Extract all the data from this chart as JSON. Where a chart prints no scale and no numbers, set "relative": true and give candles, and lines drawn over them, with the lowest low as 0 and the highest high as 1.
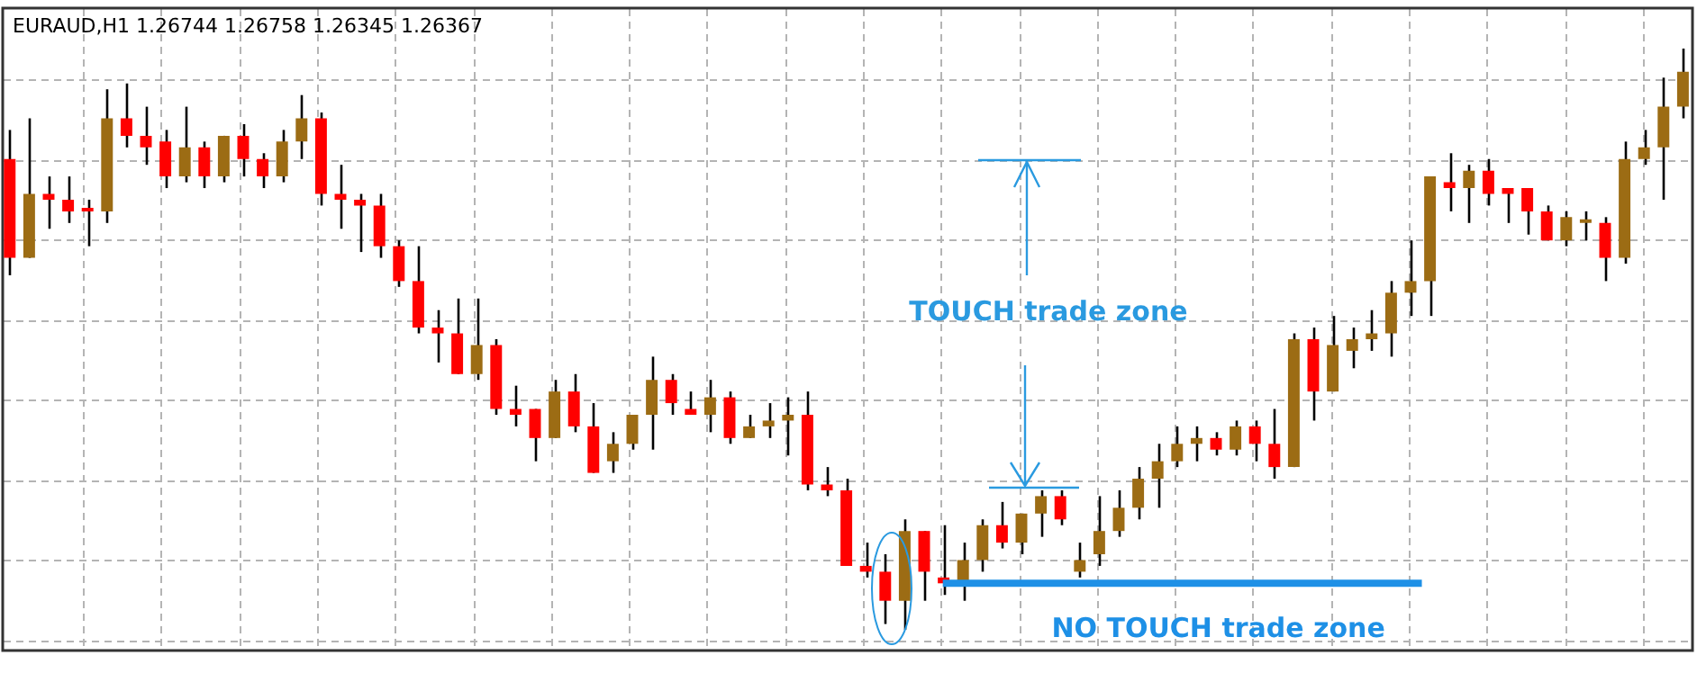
{
  "chart_data": {
    "type": "candlestick",
    "title": "EURAUD,H1  1.26744 1.26758 1.26345 1.26367",
    "relative": true,
    "grid": true,
    "legend": false,
    "annotations": [
      "TOUCH trade zone"
    ],
    "ref_lines": [
      {
        "axis": "y",
        "value": 0.08,
        "label": "NO TOUCH trade zone",
        "color": "#1e90e6"
      }
    ],
    "categories": [
      null,
      null,
      null,
      null,
      null,
      null,
      null,
      null,
      null,
      null,
      null,
      null,
      null,
      null,
      null,
      null,
      null,
      null,
      null,
      null,
      null,
      null,
      null,
      null,
      null,
      null,
      null,
      null,
      null,
      null,
      null,
      null,
      null,
      null,
      null,
      null,
      null,
      null,
      null,
      null,
      null,
      null,
      null,
      null,
      null,
      null,
      null,
      null,
      null,
      null,
      null,
      null,
      null,
      null,
      null,
      null,
      null,
      null,
      null,
      null,
      null,
      null,
      null,
      null,
      null,
      null,
      null,
      null,
      null,
      null,
      null,
      null,
      null,
      null,
      null,
      null,
      null,
      null,
      null,
      null,
      null,
      null,
      null,
      null,
      null,
      null,
      null
    ],
    "ohlc": [
      [
        0.81,
        0.86,
        0.61,
        0.64
      ],
      [
        0.64,
        0.88,
        0.64,
        0.75
      ],
      [
        0.75,
        0.78,
        0.69,
        0.74
      ],
      [
        0.74,
        0.78,
        0.7,
        0.72
      ],
      [
        0.725,
        0.74,
        0.66,
        0.72
      ],
      [
        0.72,
        0.93,
        0.7,
        0.88
      ],
      [
        0.88,
        0.94,
        0.83,
        0.85
      ],
      [
        0.85,
        0.9,
        0.8,
        0.83
      ],
      [
        0.84,
        0.86,
        0.76,
        0.78
      ],
      [
        0.78,
        0.9,
        0.77,
        0.83
      ],
      [
        0.83,
        0.84,
        0.76,
        0.78
      ],
      [
        0.78,
        0.85,
        0.77,
        0.85
      ],
      [
        0.85,
        0.87,
        0.78,
        0.81
      ],
      [
        0.81,
        0.82,
        0.76,
        0.78
      ],
      [
        0.78,
        0.86,
        0.77,
        0.84
      ],
      [
        0.84,
        0.92,
        0.81,
        0.88
      ],
      [
        0.88,
        0.89,
        0.73,
        0.75
      ],
      [
        0.75,
        0.8,
        0.69,
        0.74
      ],
      [
        0.74,
        0.75,
        0.65,
        0.73
      ],
      [
        0.73,
        0.75,
        0.64,
        0.66
      ],
      [
        0.66,
        0.67,
        0.59,
        0.6
      ],
      [
        0.6,
        0.66,
        0.51,
        0.52
      ],
      [
        0.52,
        0.55,
        0.46,
        0.51
      ],
      [
        0.51,
        0.57,
        0.44,
        0.44
      ],
      [
        0.44,
        0.57,
        0.43,
        0.49
      ],
      [
        0.49,
        0.5,
        0.37,
        0.38
      ],
      [
        0.38,
        0.42,
        0.35,
        0.37
      ],
      [
        0.38,
        0.38,
        0.29,
        0.33
      ],
      [
        0.33,
        0.43,
        0.33,
        0.41
      ],
      [
        0.41,
        0.44,
        0.34,
        0.35
      ],
      [
        0.35,
        0.39,
        0.27,
        0.27
      ],
      [
        0.29,
        0.34,
        0.27,
        0.32
      ],
      [
        0.32,
        0.37,
        0.31,
        0.37
      ],
      [
        0.37,
        0.47,
        0.31,
        0.43
      ],
      [
        0.43,
        0.44,
        0.37,
        0.39
      ],
      [
        0.38,
        0.41,
        0.37,
        0.37
      ],
      [
        0.37,
        0.43,
        0.34,
        0.4
      ],
      [
        0.4,
        0.41,
        0.32,
        0.33
      ],
      [
        0.33,
        0.37,
        0.33,
        0.35
      ],
      [
        0.35,
        0.39,
        0.33,
        0.36
      ],
      [
        0.36,
        0.4,
        0.3,
        0.37
      ],
      [
        0.37,
        0.41,
        0.24,
        0.25
      ],
      [
        0.25,
        0.28,
        0.23,
        0.24
      ],
      [
        0.24,
        0.26,
        0.11,
        0.11
      ],
      [
        0.11,
        0.15,
        0.09,
        0.1
      ],
      [
        0.1,
        0.13,
        0.01,
        0.05
      ],
      [
        0.05,
        0.19,
        0,
        0.17
      ],
      [
        0.17,
        0.17,
        0.05,
        0.1
      ],
      [
        0.09,
        0.18,
        0.06,
        0.08
      ],
      [
        0.08,
        0.15,
        0.05,
        0.12
      ],
      [
        0.12,
        0.19,
        0.1,
        0.18
      ],
      [
        0.18,
        0.22,
        0.14,
        0.15
      ],
      [
        0.15,
        0.2,
        0.13,
        0.2
      ],
      [
        0.2,
        0.24,
        0.16,
        0.23
      ],
      [
        0.23,
        0.24,
        0.18,
        0.19
      ],
      [
        0.1,
        0.15,
        0.09,
        0.12
      ],
      [
        0.13,
        0.23,
        0.11,
        0.17
      ],
      [
        0.17,
        0.24,
        0.16,
        0.21
      ],
      [
        0.21,
        0.28,
        0.19,
        0.26
      ],
      [
        0.26,
        0.32,
        0.21,
        0.29
      ],
      [
        0.29,
        0.35,
        0.28,
        0.32
      ],
      [
        0.32,
        0.35,
        0.29,
        0.33
      ],
      [
        0.33,
        0.34,
        0.3,
        0.31
      ],
      [
        0.31,
        0.36,
        0.3,
        0.35
      ],
      [
        0.35,
        0.36,
        0.29,
        0.32
      ],
      [
        0.32,
        0.38,
        0.26,
        0.28
      ],
      [
        0.28,
        0.51,
        0.28,
        0.5
      ],
      [
        0.5,
        0.52,
        0.36,
        0.41
      ],
      [
        0.41,
        0.54,
        0.41,
        0.49
      ],
      [
        0.48,
        0.52,
        0.45,
        0.5
      ],
      [
        0.5,
        0.55,
        0.48,
        0.51
      ],
      [
        0.51,
        0.6,
        0.47,
        0.58
      ],
      [
        0.58,
        0.67,
        0.54,
        0.6
      ],
      [
        0.6,
        0.78,
        0.54,
        0.78
      ],
      [
        0.77,
        0.82,
        0.72,
        0.76
      ],
      [
        0.76,
        0.8,
        0.7,
        0.79
      ],
      [
        0.79,
        0.81,
        0.73,
        0.75
      ],
      [
        0.76,
        0.76,
        0.7,
        0.75
      ],
      [
        0.76,
        0.76,
        0.68,
        0.72
      ],
      [
        0.72,
        0.73,
        0.67,
        0.67
      ],
      [
        0.67,
        0.72,
        0.66,
        0.71
      ],
      [
        0.7,
        0.72,
        0.67,
        0.705
      ],
      [
        0.7,
        0.71,
        0.6,
        0.64
      ],
      [
        0.64,
        0.84,
        0.63,
        0.81
      ],
      [
        0.81,
        0.86,
        0.8,
        0.83
      ],
      [
        0.83,
        0.95,
        0.74,
        0.9
      ],
      [
        0.9,
        1,
        0.88,
        0.96
      ]
    ],
    "colors": [
      "#ff0000",
      "#9c6c14",
      "#ff0000",
      "#ff0000",
      "#ff0000",
      "#9c6c14",
      "#ff0000",
      "#ff0000",
      "#ff0000",
      "#9c6c14",
      "#ff0000",
      "#9c6c14",
      "#ff0000",
      "#ff0000",
      "#9c6c14",
      "#9c6c14",
      "#ff0000",
      "#ff0000",
      "#ff0000",
      "#ff0000",
      "#ff0000",
      "#ff0000",
      "#ff0000",
      "#ff0000",
      "#9c6c14",
      "#ff0000",
      "#ff0000",
      "#ff0000",
      "#9c6c14",
      "#ff0000",
      "#ff0000",
      "#9c6c14",
      "#9c6c14",
      "#9c6c14",
      "#ff0000",
      "#ff0000",
      "#9c6c14",
      "#ff0000",
      "#9c6c14",
      "#9c6c14",
      "#9c6c14",
      "#ff0000",
      "#ff0000",
      "#ff0000",
      "#ff0000",
      "#ff0000",
      "#9c6c14",
      "#ff0000",
      "#ff0000",
      "#9c6c14",
      "#9c6c14",
      "#ff0000",
      "#9c6c14",
      "#9c6c14",
      "#ff0000",
      "#9c6c14",
      "#9c6c14",
      "#9c6c14",
      "#9c6c14",
      "#9c6c14",
      "#9c6c14",
      "#9c6c14",
      "#ff0000",
      "#9c6c14",
      "#ff0000",
      "#ff0000",
      "#9c6c14",
      "#ff0000",
      "#9c6c14",
      "#9c6c14",
      "#9c6c14",
      "#9c6c14",
      "#9c6c14",
      "#9c6c14",
      "#ff0000",
      "#9c6c14",
      "#ff0000",
      "#ff0000",
      "#ff0000",
      "#ff0000",
      "#9c6c14",
      "#9c6c14",
      "#ff0000",
      "#9c6c14",
      "#9c6c14",
      "#9c6c14",
      "#9c6c14"
    ]
  }
}
